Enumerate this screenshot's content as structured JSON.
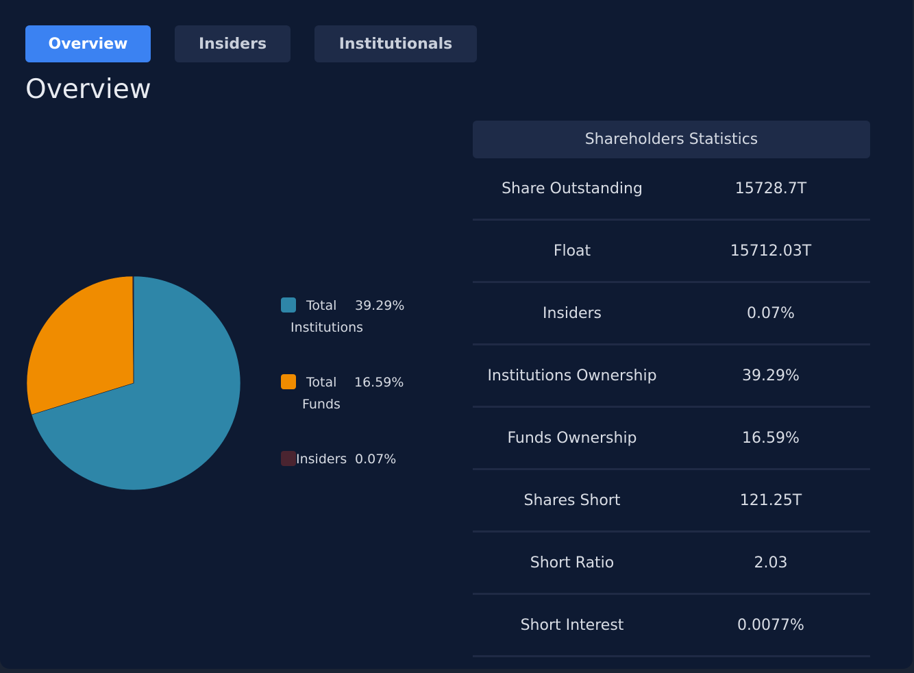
{
  "tabs": [
    {
      "label": "Overview",
      "active": true
    },
    {
      "label": "Insiders",
      "active": false
    },
    {
      "label": "Institutionals",
      "active": false
    }
  ],
  "page_title": "Overview",
  "legend": [
    {
      "line1_a": "Total",
      "line1_b": "39.29%",
      "line2": "Institutions",
      "color": "#2e86a8"
    },
    {
      "line1_a": "Total",
      "line1_b": "16.59%",
      "line2": "Funds",
      "color": "#f08c00"
    },
    {
      "line1_a": "Insiders",
      "line1_b": "0.07%",
      "line2": "",
      "color": "#4a2430"
    }
  ],
  "chart_data": {
    "type": "pie",
    "slices": [
      {
        "name": "Total Institutions",
        "value": 39.29,
        "color": "#2e86a8"
      },
      {
        "name": "Total Funds",
        "value": 16.59,
        "color": "#f08c00"
      },
      {
        "name": "Insiders",
        "value": 0.07,
        "color": "#4a2430"
      }
    ]
  },
  "stats": {
    "header": "Shareholders Statistics",
    "rows": [
      {
        "label": "Share Outstanding",
        "value": "15728.7T"
      },
      {
        "label": "Float",
        "value": "15712.03T"
      },
      {
        "label": "Insiders",
        "value": "0.07%"
      },
      {
        "label": "Institutions Ownership",
        "value": "39.29%"
      },
      {
        "label": "Funds Ownership",
        "value": "16.59%"
      },
      {
        "label": "Shares Short",
        "value": "121.25T"
      },
      {
        "label": "Short Ratio",
        "value": "2.03"
      },
      {
        "label": "Short Interest",
        "value": "0.0077%"
      }
    ]
  }
}
